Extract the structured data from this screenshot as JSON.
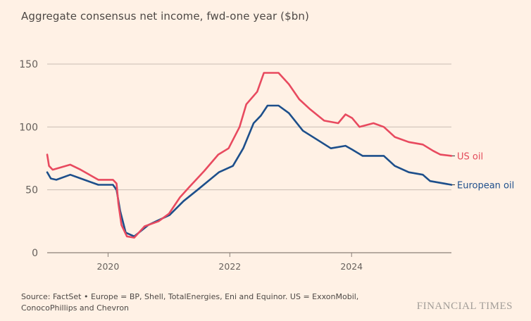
{
  "title": "Aggregate consensus net income, fwd-one year ($bn)",
  "source": "Source: FactSet • Europe = BP, Shell, TotalEnergies, Eni and Equinor. US = ExxonMobil, ConocoPhillips and Chevron",
  "brand": "FINANCIAL TIMES",
  "colors": {
    "us": "#e84a5f",
    "europe": "#1d4f8b",
    "grid": "#c9bdb3",
    "axis": "#8a8078"
  },
  "chart_data": {
    "type": "line",
    "title": "Aggregate consensus net income, fwd-one year ($bn)",
    "xlabel": "",
    "ylabel": "",
    "xlim": [
      2019.0,
      2025.64
    ],
    "ylim": [
      0,
      150
    ],
    "yticks": [
      0,
      50,
      100,
      150
    ],
    "xticks": [
      2020,
      2022,
      2024
    ],
    "ytick_labels": [
      "0",
      "50",
      "100",
      "150"
    ],
    "xtick_labels": [
      "2020",
      "2022",
      "2024"
    ],
    "grid": true,
    "legend": "inline-right",
    "series": [
      {
        "name": "US oil",
        "color": "#e84a5f",
        "x": [
          2019.0,
          2019.03,
          2019.09,
          2019.38,
          2019.55,
          2019.73,
          2019.84,
          2020.08,
          2020.14,
          2020.17,
          2020.22,
          2020.31,
          2020.43,
          2020.6,
          2020.83,
          2021.0,
          2021.18,
          2021.35,
          2021.58,
          2021.81,
          2021.98,
          2022.16,
          2022.27,
          2022.45,
          2022.56,
          2022.8,
          2022.97,
          2023.14,
          2023.32,
          2023.55,
          2023.78,
          2023.9,
          2024.01,
          2024.13,
          2024.36,
          2024.53,
          2024.71,
          2024.94,
          2025.17,
          2025.34,
          2025.46,
          2025.64
        ],
        "values": [
          78,
          69,
          66,
          70,
          66,
          61,
          58,
          58,
          55,
          39,
          22,
          13,
          12,
          21,
          25,
          31,
          44,
          53,
          65,
          78,
          83,
          100,
          118,
          128,
          143,
          143,
          134,
          122,
          114,
          105,
          103,
          110,
          107,
          100,
          103,
          100,
          92,
          88,
          86,
          81,
          78,
          77
        ]
      },
      {
        "name": "European oil",
        "color": "#1d4f8b",
        "x": [
          2019.0,
          2019.06,
          2019.15,
          2019.38,
          2019.61,
          2019.84,
          2020.08,
          2020.14,
          2020.2,
          2020.29,
          2020.43,
          2020.66,
          2021.01,
          2021.24,
          2021.47,
          2021.82,
          2022.05,
          2022.22,
          2022.39,
          2022.51,
          2022.62,
          2022.8,
          2022.97,
          2023.2,
          2023.43,
          2023.66,
          2023.9,
          2024.01,
          2024.18,
          2024.36,
          2024.53,
          2024.71,
          2024.94,
          2025.17,
          2025.29,
          2025.64
        ],
        "values": [
          64,
          59,
          58,
          62,
          58,
          54,
          54,
          50,
          33,
          16,
          13,
          22,
          30,
          41,
          50,
          64,
          69,
          83,
          103,
          109,
          117,
          117,
          111,
          97,
          90,
          83,
          85,
          82,
          77,
          77,
          77,
          69,
          64,
          62,
          57,
          54
        ]
      }
    ],
    "line_labels": [
      {
        "series": "US oil",
        "text": "US oil"
      },
      {
        "series": "European oil",
        "text": "European oil"
      }
    ]
  }
}
